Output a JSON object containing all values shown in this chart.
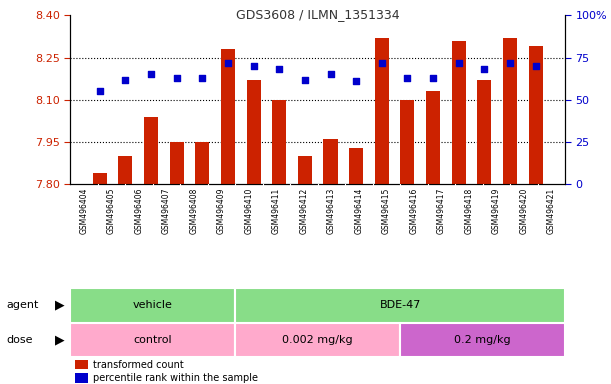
{
  "title": "GDS3608 / ILMN_1351334",
  "samples": [
    "GSM496404",
    "GSM496405",
    "GSM496406",
    "GSM496407",
    "GSM496408",
    "GSM496409",
    "GSM496410",
    "GSM496411",
    "GSM496412",
    "GSM496413",
    "GSM496414",
    "GSM496415",
    "GSM496416",
    "GSM496417",
    "GSM496418",
    "GSM496419",
    "GSM496420",
    "GSM496421"
  ],
  "bar_values": [
    7.84,
    7.9,
    8.04,
    7.95,
    7.95,
    8.28,
    8.17,
    8.1,
    7.9,
    7.96,
    7.93,
    8.32,
    8.1,
    8.13,
    8.31,
    8.17,
    8.32,
    8.29
  ],
  "blue_values": [
    55,
    62,
    65,
    63,
    63,
    72,
    70,
    68,
    62,
    65,
    61,
    72,
    63,
    63,
    72,
    68,
    72,
    70
  ],
  "ylim_left": [
    7.8,
    8.4
  ],
  "ylim_right": [
    0,
    100
  ],
  "yticks_left": [
    7.8,
    7.95,
    8.1,
    8.25,
    8.4
  ],
  "yticks_right": [
    0,
    25,
    50,
    75,
    100
  ],
  "hlines": [
    8.25,
    8.1,
    7.95
  ],
  "bar_color": "#CC2200",
  "blue_color": "#0000CC",
  "agent_groups": [
    {
      "label": "vehicle",
      "start": 0,
      "end": 6,
      "color": "#88DD88"
    },
    {
      "label": "BDE-47",
      "start": 6,
      "end": 18,
      "color": "#88DD88"
    }
  ],
  "dose_groups": [
    {
      "label": "control",
      "start": 0,
      "end": 6,
      "color": "#FFAACC"
    },
    {
      "label": "0.002 mg/kg",
      "start": 6,
      "end": 12,
      "color": "#FFAACC"
    },
    {
      "label": "0.2 mg/kg",
      "start": 12,
      "end": 18,
      "color": "#CC66CC"
    }
  ],
  "figsize": [
    6.11,
    3.84
  ],
  "dpi": 100
}
